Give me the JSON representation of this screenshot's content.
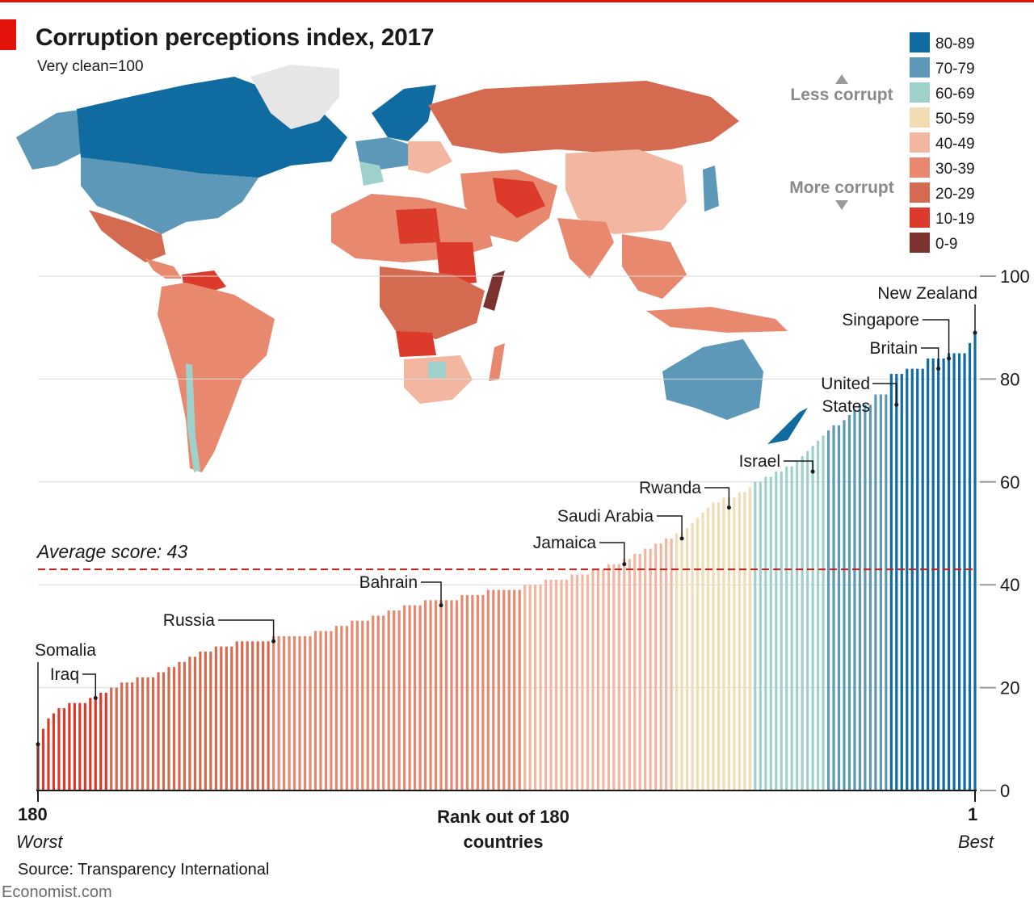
{
  "header": {
    "title": "Corruption perceptions index, 2017",
    "subtitle": "Very clean=100"
  },
  "legend": {
    "less_corrupt": "Less corrupt",
    "more_corrupt": "More corrupt",
    "bins": [
      {
        "label": "80-89",
        "color": "#0f6ba0"
      },
      {
        "label": "70-79",
        "color": "#5e98b8"
      },
      {
        "label": "60-69",
        "color": "#9fd1cc"
      },
      {
        "label": "50-59",
        "color": "#f1dcb4"
      },
      {
        "label": "40-49",
        "color": "#f3b6a0"
      },
      {
        "label": "30-39",
        "color": "#e8896f"
      },
      {
        "label": "20-29",
        "color": "#d46a50"
      },
      {
        "label": "10-19",
        "color": "#dc3a2a"
      },
      {
        "label": "0-9",
        "color": "#7c3330"
      }
    ]
  },
  "chart_data": {
    "type": "bar",
    "title": "Corruption perceptions index, 2017",
    "subtitle": "Very clean=100",
    "xlabel": "Rank out of 180 countries",
    "x_left_label": "180",
    "x_right_label": "1",
    "x_left_note": "Worst",
    "x_right_note": "Best",
    "ylim": [
      0,
      100
    ],
    "yticks": [
      0,
      20,
      40,
      60,
      80,
      100
    ],
    "average": 43,
    "average_label": "Average score: 43",
    "scores_rank180_to_rank1": [
      9,
      12,
      14,
      15,
      16,
      16,
      17,
      17,
      17,
      17,
      18,
      18,
      19,
      19,
      20,
      20,
      21,
      21,
      21,
      22,
      22,
      22,
      22,
      23,
      23,
      24,
      24,
      25,
      25,
      26,
      26,
      27,
      27,
      27,
      28,
      28,
      28,
      28,
      29,
      29,
      29,
      29,
      29,
      29,
      29,
      30,
      30,
      30,
      30,
      30,
      30,
      30,
      30,
      31,
      31,
      31,
      31,
      32,
      32,
      32,
      33,
      33,
      33,
      33,
      34,
      34,
      34,
      35,
      35,
      35,
      36,
      36,
      36,
      36,
      37,
      37,
      37,
      37,
      37,
      37,
      37,
      38,
      38,
      38,
      38,
      38,
      39,
      39,
      39,
      39,
      39,
      39,
      39,
      40,
      40,
      40,
      40,
      41,
      41,
      41,
      41,
      41,
      42,
      42,
      42,
      42,
      43,
      43,
      43,
      44,
      44,
      44,
      45,
      45,
      46,
      46,
      47,
      47,
      48,
      48,
      49,
      49,
      50,
      50,
      51,
      52,
      53,
      54,
      55,
      56,
      56,
      57,
      57,
      57,
      58,
      58,
      59,
      60,
      60,
      61,
      61,
      62,
      62,
      63,
      63,
      64,
      65,
      66,
      67,
      68,
      69,
      70,
      71,
      71,
      72,
      73,
      74,
      75,
      75,
      75,
      77,
      77,
      77,
      81,
      81,
      81,
      82,
      82,
      82,
      82,
      84,
      84,
      84,
      84,
      85,
      85,
      85,
      85,
      87,
      89
    ],
    "annotations": [
      {
        "name": "Somalia",
        "rank": 180,
        "score": 9
      },
      {
        "name": "Iraq",
        "rank": 169,
        "score": 18
      },
      {
        "name": "Russia",
        "rank": 135,
        "score": 29
      },
      {
        "name": "Bahrain",
        "rank": 103,
        "score": 36
      },
      {
        "name": "Jamaica",
        "rank": 68,
        "score": 44
      },
      {
        "name": "Saudi Arabia",
        "rank": 57,
        "score": 49
      },
      {
        "name": "Rwanda",
        "rank": 48,
        "score": 55
      },
      {
        "name": "Israel",
        "rank": 32,
        "score": 62
      },
      {
        "name": "United States",
        "rank": 16,
        "score": 75
      },
      {
        "name": "Britain",
        "rank": 8,
        "score": 82
      },
      {
        "name": "Singapore",
        "rank": 6,
        "score": 84
      },
      {
        "name": "New Zealand",
        "rank": 1,
        "score": 89
      }
    ]
  },
  "map": {
    "description_none": ""
  },
  "footer": {
    "source": "Source: Transparency International",
    "brand": "Economist.com"
  }
}
